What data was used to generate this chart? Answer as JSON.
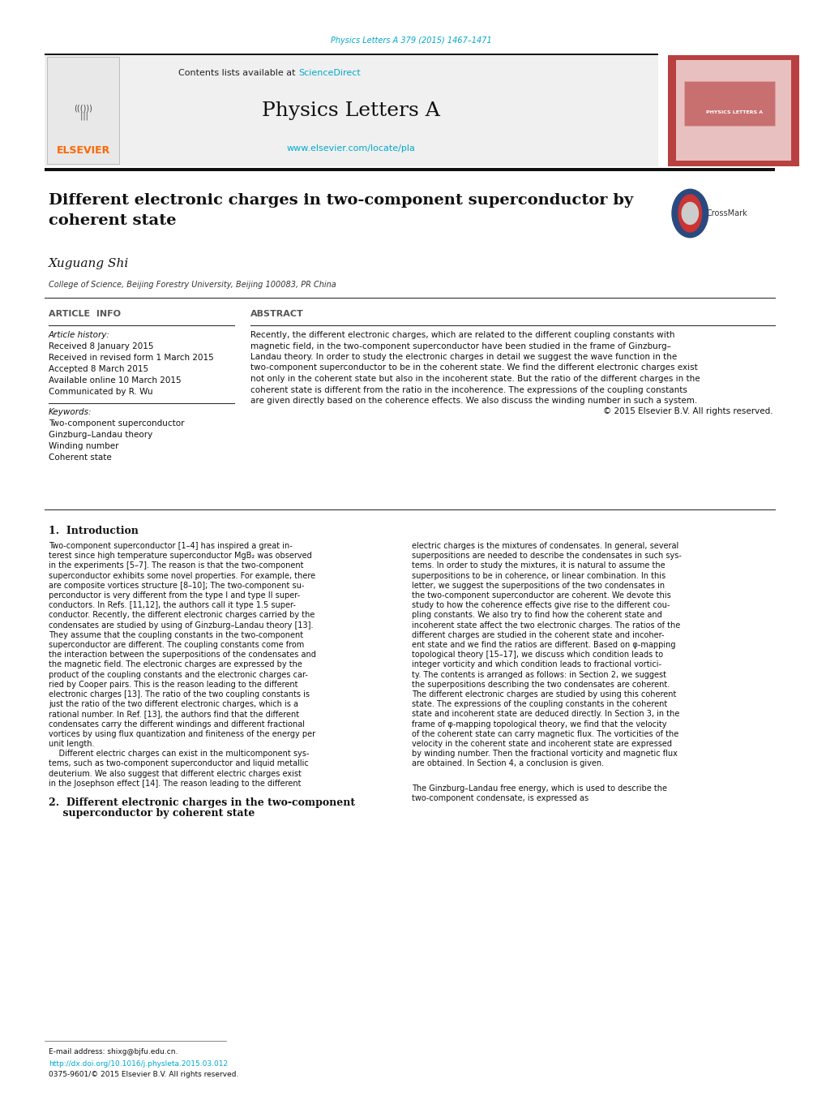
{
  "page_width": 10.2,
  "page_height": 13.51,
  "bg_color": "#ffffff",
  "journal_ref_text": "Physics Letters A 379 (2015) 1467–1471",
  "journal_ref_color": "#00aacc",
  "header_bg": "#f0f0f0",
  "contents_text": "Contents lists available at ",
  "sciencedirect_text": "ScienceDirect",
  "sciencedirect_color": "#00aacc",
  "journal_title": "Physics Letters A",
  "journal_url": "www.elsevier.com/locate/pla",
  "journal_url_color": "#00aacc",
  "elsevier_color": "#ff6600",
  "sidebar_color": "#b94040",
  "sidebar_text": "PHYSICS LETTERS A",
  "sidebar_text_color": "#ffffff",
  "sidebar_inner_color": "#e8c0c0",
  "article_title": "Different electronic charges in two-component superconductor by\ncoherent state",
  "author_name": "Xuguang Shi",
  "affiliation": "College of Science, Beijing Forestry University, Beijing 100083, PR China",
  "article_info_label": "ARTICLE  INFO",
  "abstract_label": "ABSTRACT",
  "article_history_label": "Article history:",
  "received_1": "Received 8 January 2015",
  "received_2": "Received in revised form 1 March 2015",
  "accepted": "Accepted 8 March 2015",
  "available": "Available online 10 March 2015",
  "communicated": "Communicated by R. Wu",
  "keywords_label": "Keywords:",
  "keywords": [
    "Two-component superconductor",
    "Ginzburg–Landau theory",
    "Winding number",
    "Coherent state"
  ],
  "abstract_lines": [
    "Recently, the different electronic charges, which are related to the different coupling constants with",
    "magnetic field, in the two-component superconductor have been studied in the frame of Ginzburg–",
    "Landau theory. In order to study the electronic charges in detail we suggest the wave function in the",
    "two-component superconductor to be in the coherent state. We find the different electronic charges exist",
    "not only in the coherent state but also in the incoherent state. But the ratio of the different charges in the",
    "coherent state is different from the ratio in the incoherence. The expressions of the coupling constants",
    "are given directly based on the coherence effects. We also discuss the winding number in such a system.",
    "© 2015 Elsevier B.V. All rights reserved."
  ],
  "intro_heading": "1.  Introduction",
  "intro_col1_lines": [
    "Two-component superconductor [1–4] has inspired a great in-",
    "terest since high temperature superconductor MgB₂ was observed",
    "in the experiments [5–7]. The reason is that the two-component",
    "superconductor exhibits some novel properties. For example, there",
    "are composite vortices structure [8–10]; The two-component su-",
    "perconductor is very different from the type I and type II super-",
    "conductors. In Refs. [11,12], the authors call it type 1.5 super-",
    "conductor. Recently, the different electronic charges carried by the",
    "condensates are studied by using of Ginzburg–Landau theory [13].",
    "They assume that the coupling constants in the two-component",
    "superconductor are different. The coupling constants come from",
    "the interaction between the superpositions of the condensates and",
    "the magnetic field. The electronic charges are expressed by the",
    "product of the coupling constants and the electronic charges car-",
    "ried by Cooper pairs. This is the reason leading to the different",
    "electronic charges [13]. The ratio of the two coupling constants is",
    "just the ratio of the two different electronic charges, which is a",
    "rational number. In Ref. [13], the authors find that the different",
    "condensates carry the different windings and different fractional",
    "vortices by using flux quantization and finiteness of the energy per",
    "unit length.",
    "    Different electric charges can exist in the multicomponent sys-",
    "tems, such as two-component superconductor and liquid metallic",
    "deuterium. We also suggest that different electric charges exist",
    "in the Josephson effect [14]. The reason leading to the different"
  ],
  "intro_col2_lines": [
    "electric charges is the mixtures of condensates. In general, several",
    "superpositions are needed to describe the condensates in such sys-",
    "tems. In order to study the mixtures, it is natural to assume the",
    "superpositions to be in coherence, or linear combination. In this",
    "letter, we suggest the superpositions of the two condensates in",
    "the two-component superconductor are coherent. We devote this",
    "study to how the coherence effects give rise to the different cou-",
    "pling constants. We also try to find how the coherent state and",
    "incoherent state affect the two electronic charges. The ratios of the",
    "different charges are studied in the coherent state and incoher-",
    "ent state and we find the ratios are different. Based on φ-mapping",
    "topological theory [15–17], we discuss which condition leads to",
    "integer vorticity and which condition leads to fractional vortici-",
    "ty. The contents is arranged as follows: in Section 2, we suggest",
    "the superpositions describing the two condensates are coherent.",
    "The different electronic charges are studied by using this coherent",
    "state. The expressions of the coupling constants in the coherent",
    "state and incoherent state are deduced directly. In Section 3, in the",
    "frame of φ-mapping topological theory, we find that the velocity",
    "of the coherent state can carry magnetic flux. The vorticities of the",
    "velocity in the coherent state and incoherent state are expressed",
    "by winding number. Then the fractional vorticity and magnetic flux",
    "are obtained. In Section 4, a conclusion is given."
  ],
  "sec2_heading_line1": "2.  Different electronic charges in the two-component",
  "sec2_heading_line2": "    superconductor by coherent state",
  "sec2_col2_line1": "The Ginzburg–Landau free energy, which is used to describe the",
  "sec2_col2_line2": "two-component condensate, is expressed as",
  "footer_email": "E-mail address: shixg@bjfu.edu.cn.",
  "footer_doi": "http://dx.doi.org/10.1016/j.physleta.2015.03.012",
  "footer_copyright": "0375-9601/© 2015 Elsevier B.V. All rights reserved.",
  "black_bar_color": "#111111",
  "thin_line_color": "#333333"
}
